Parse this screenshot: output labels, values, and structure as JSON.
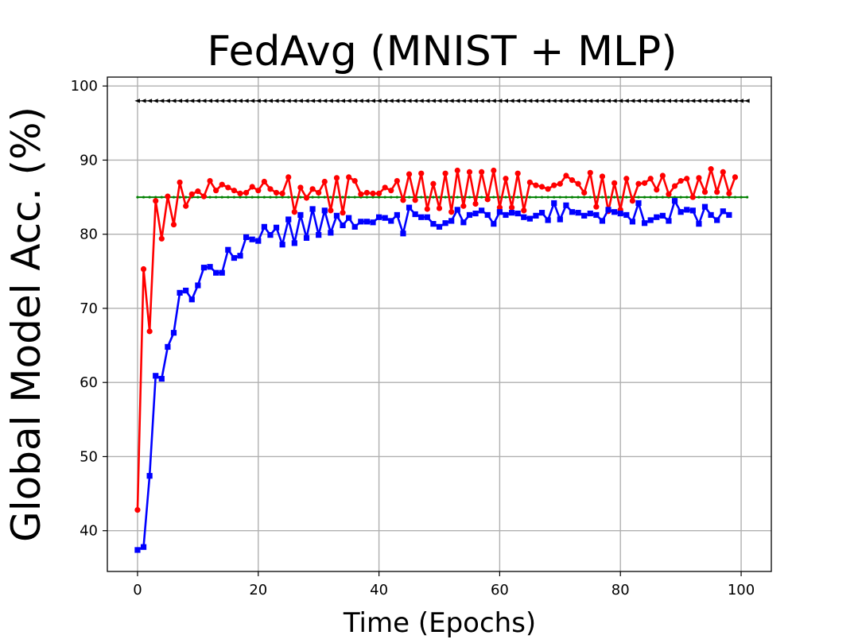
{
  "chart_data": {
    "type": "line",
    "title": "FedAvg (MNIST + MLP)",
    "xlabel": "Time (Epochs)",
    "ylabel": "Global Model Acc. (%)",
    "xlim": [
      -5,
      105
    ],
    "ylim": [
      34.5,
      101.2
    ],
    "xticks": [
      0,
      20,
      40,
      60,
      80,
      100
    ],
    "yticks": [
      40,
      50,
      60,
      70,
      80,
      90,
      100
    ],
    "grid": true,
    "series": [
      {
        "name": "reference-top",
        "color": "#000000",
        "marker": "triangle-left",
        "x_start": 0,
        "x_end": 101,
        "count": 102,
        "constant": 98
      },
      {
        "name": "reference-middle",
        "color": "#008000",
        "marker": "small-dot",
        "x_start": 0,
        "x_end": 101,
        "count": 102,
        "constant": 85
      },
      {
        "name": "red-series",
        "color": "#ff0000",
        "marker": "circle",
        "x_start": 0,
        "values": [
          42.8,
          75.3,
          66.9,
          84.5,
          79.4,
          85.1,
          81.3,
          87.0,
          83.8,
          85.4,
          85.8,
          85.1,
          87.2,
          85.9,
          86.7,
          86.3,
          85.9,
          85.5,
          85.6,
          86.4,
          85.9,
          87.1,
          86.1,
          85.6,
          85.5,
          87.7,
          83.0,
          86.3,
          84.9,
          86.1,
          85.6,
          87.1,
          83.2,
          87.6,
          82.9,
          87.7,
          87.2,
          85.4,
          85.6,
          85.5,
          85.5,
          86.3,
          85.9,
          87.2,
          84.6,
          88.1,
          84.6,
          88.2,
          83.4,
          86.8,
          83.5,
          88.2,
          83.0,
          88.6,
          83.8,
          88.4,
          84.1,
          88.4,
          84.7,
          88.6,
          83.6,
          87.5,
          83.6,
          88.2,
          83.2,
          87.0,
          86.6,
          86.4,
          86.1,
          86.6,
          86.8,
          87.9,
          87.3,
          86.8,
          85.6,
          88.3,
          83.7,
          87.8,
          83.1,
          86.9,
          83.3,
          87.5,
          84.5,
          86.8,
          86.9,
          87.5,
          86.0,
          87.9,
          85.4,
          86.5,
          87.2,
          87.5,
          85.0,
          87.6,
          85.7,
          88.8,
          85.7,
          88.4,
          85.5,
          87.7
        ]
      },
      {
        "name": "blue-series",
        "color": "#0000ff",
        "marker": "square",
        "x_start": 0,
        "values": [
          37.4,
          37.8,
          47.4,
          60.9,
          60.5,
          64.8,
          66.7,
          72.1,
          72.4,
          71.2,
          73.1,
          75.5,
          75.6,
          74.8,
          74.8,
          77.9,
          76.8,
          77.1,
          79.6,
          79.3,
          79.1,
          81.0,
          79.9,
          80.9,
          78.6,
          82.0,
          78.8,
          82.6,
          79.5,
          83.4,
          79.9,
          83.2,
          80.2,
          82.5,
          81.2,
          82.2,
          81.0,
          81.7,
          81.7,
          81.6,
          82.3,
          82.2,
          81.8,
          82.6,
          80.1,
          83.6,
          82.7,
          82.3,
          82.3,
          81.4,
          81.0,
          81.5,
          81.8,
          83.3,
          81.6,
          82.6,
          82.8,
          83.2,
          82.6,
          81.4,
          83.0,
          82.6,
          82.9,
          82.8,
          82.3,
          82.1,
          82.5,
          82.9,
          81.9,
          84.2,
          82.0,
          83.9,
          83.0,
          82.9,
          82.5,
          82.8,
          82.6,
          81.8,
          83.3,
          83.0,
          82.8,
          82.6,
          81.7,
          84.2,
          81.5,
          81.9,
          82.3,
          82.5,
          81.8,
          84.5,
          83.0,
          83.3,
          83.2,
          81.4,
          83.7,
          82.6,
          81.9,
          83.1,
          82.6
        ]
      }
    ]
  }
}
